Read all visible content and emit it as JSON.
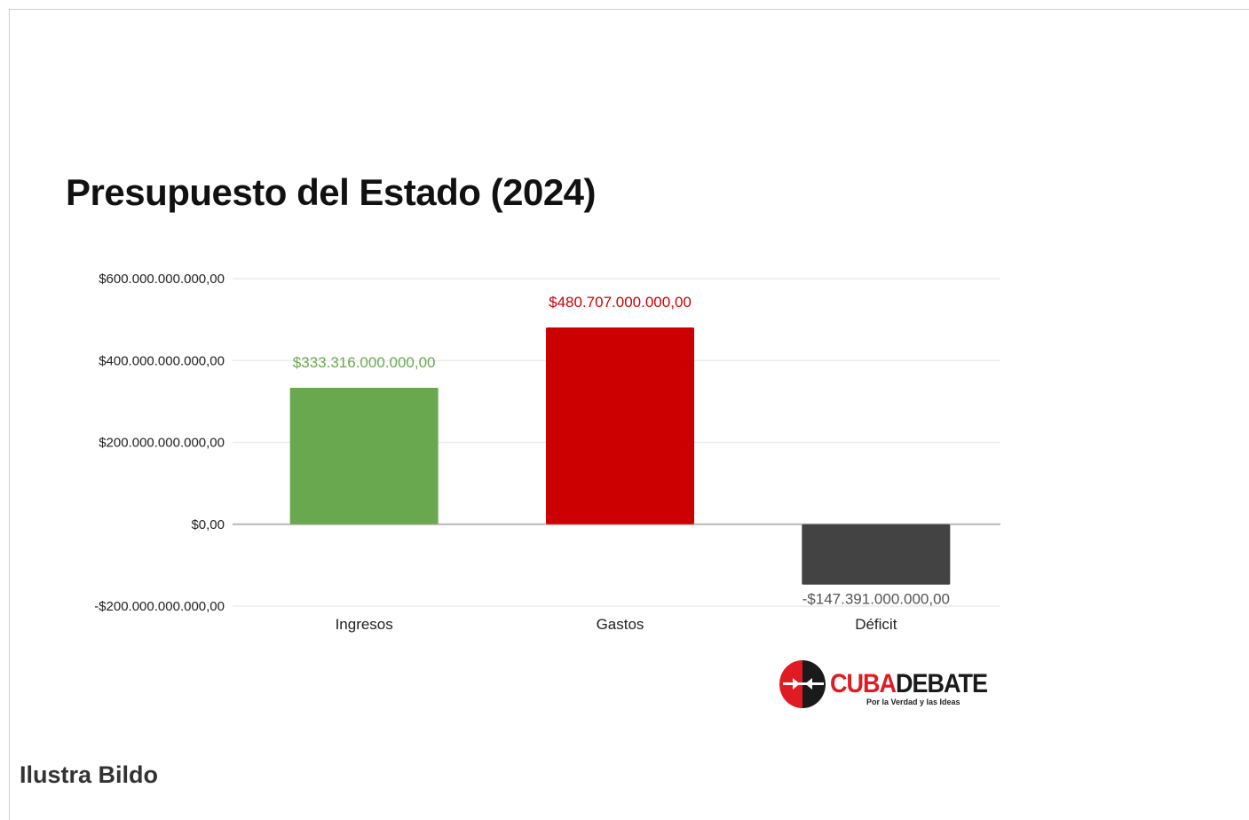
{
  "chart_data": {
    "type": "bar",
    "title": "Presupuesto del Estado (2024)",
    "categories": [
      "Ingresos",
      "Gastos",
      "Déficit"
    ],
    "values": [
      333316000000,
      480707000000,
      -147391000000
    ],
    "data_labels": [
      "$333.316.000.000,00",
      "$480.707.000.000,00",
      "-$147.391.000.000,00"
    ],
    "colors": [
      "#6aa84f",
      "#cc0000",
      "#434343"
    ],
    "ylim": [
      -200000000000,
      600000000000
    ],
    "yticks": [
      -200000000000,
      0,
      200000000000,
      400000000000,
      600000000000
    ],
    "ytick_labels": [
      "-$200.000.000.000,00",
      "$0,00",
      "$200.000.000.000,00",
      "$400.000.000.000,00",
      "$600.000.000.000,00"
    ],
    "xlabel": "",
    "ylabel": "",
    "grid": true,
    "legend": "none"
  },
  "logo": {
    "name_red": "CUBA",
    "name_dark": "DEBATE",
    "tagline": "Por la Verdad y las Ideas"
  },
  "caption": "Ilustra Bildo"
}
